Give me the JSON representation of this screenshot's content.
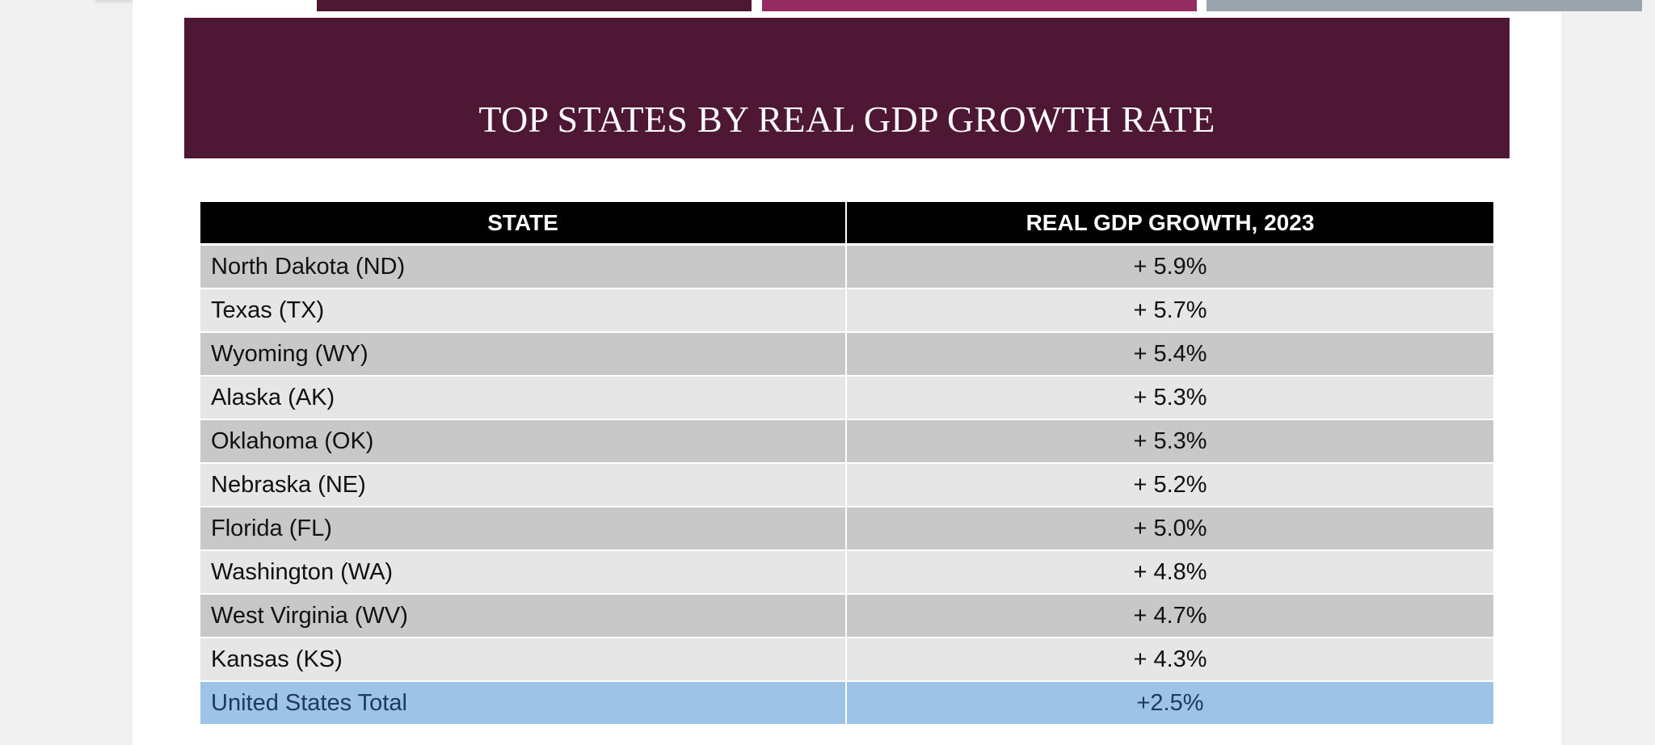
{
  "slide": {
    "title": "TOP STATES BY REAL GDP GROWTH RATE",
    "accent_colors": {
      "banner": "#4e1834",
      "bar_1": "#4e1834",
      "bar_2": "#962d62",
      "bar_3": "#9aa4ac",
      "total_row": "#9dc3e6"
    }
  },
  "table": {
    "headers": {
      "state": "STATE",
      "growth": "REAL GDP GROWTH, 2023"
    },
    "rows": [
      {
        "state": "North Dakota (ND)",
        "growth": "+ 5.9%"
      },
      {
        "state": "Texas (TX)",
        "growth": "+ 5.7%"
      },
      {
        "state": "Wyoming (WY)",
        "growth": "+ 5.4%"
      },
      {
        "state": "Alaska (AK)",
        "growth": "+ 5.3%"
      },
      {
        "state": "Oklahoma (OK)",
        "growth": "+ 5.3%"
      },
      {
        "state": "Nebraska (NE)",
        "growth": "+ 5.2%"
      },
      {
        "state": "Florida (FL)",
        "growth": "+ 5.0%"
      },
      {
        "state": "Washington (WA)",
        "growth": "+ 4.8%"
      },
      {
        "state": "West Virginia (WV)",
        "growth": "+ 4.7%"
      },
      {
        "state": "Kansas (KS)",
        "growth": "+ 4.3%"
      }
    ],
    "total": {
      "state": "United States Total",
      "growth": "+2.5%"
    }
  }
}
